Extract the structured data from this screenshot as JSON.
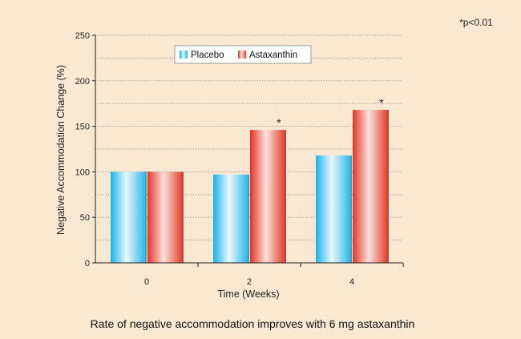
{
  "figure": {
    "background": "#fbe8d2",
    "note": "*p<0.01",
    "caption": "Rate of negative accommodation improves with 6 mg astaxanthin"
  },
  "chart_data": {
    "type": "bar",
    "title": "",
    "xlabel": "Time (Weeks)",
    "ylabel": "Negative Accommodation Change (%)",
    "categories": [
      "0",
      "2",
      "4"
    ],
    "series": [
      {
        "name": "Placebo",
        "values": [
          100,
          97,
          118
        ],
        "color": "#3cc3ef"
      },
      {
        "name": "Astaxanthin",
        "values": [
          100,
          146,
          168
        ],
        "color": "#e8402f"
      }
    ],
    "significance": [
      {
        "category": "2",
        "series": "Astaxanthin",
        "marker": "*"
      },
      {
        "category": "4",
        "series": "Astaxanthin",
        "marker": "*"
      }
    ],
    "ylim": [
      0,
      250
    ],
    "yticks": [
      0,
      50,
      100,
      150,
      200,
      250
    ],
    "grid": "dotted horizontal",
    "legend_position": "top-center"
  }
}
